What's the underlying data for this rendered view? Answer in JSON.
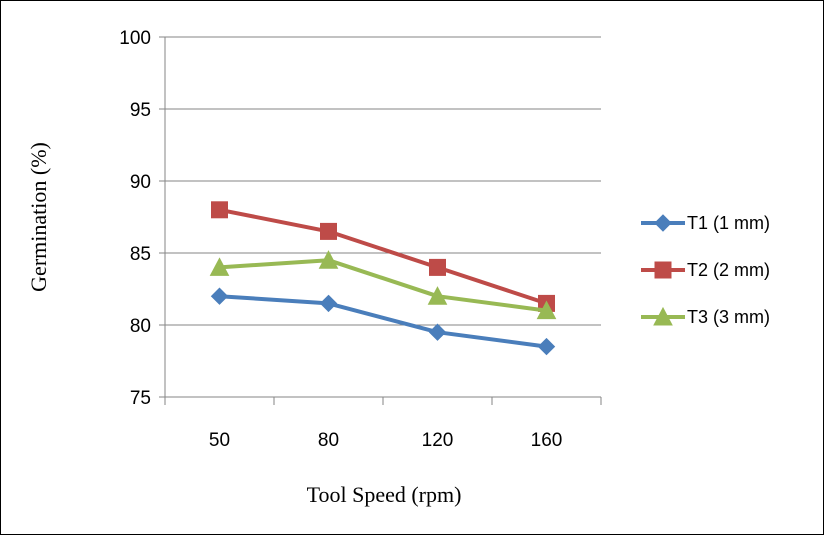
{
  "chart_data": {
    "type": "line",
    "categories": [
      "50",
      "80",
      "120",
      "160"
    ],
    "series": [
      {
        "name": "T1 (1 mm)",
        "values": [
          82,
          81.5,
          79.5,
          78.5
        ],
        "color": "#4a7ebb",
        "marker": "diamond"
      },
      {
        "name": "T2 (2 mm)",
        "values": [
          88,
          86.5,
          84,
          81.5
        ],
        "color": "#be4b48",
        "marker": "square"
      },
      {
        "name": "T3 (3 mm)",
        "values": [
          84,
          84.5,
          82,
          81
        ],
        "color": "#98b954",
        "marker": "triangle"
      }
    ],
    "xlabel": "Tool Speed (rpm)",
    "ylabel": "Germination (%)",
    "ylim": [
      75,
      100
    ],
    "yticks": [
      "75",
      "80",
      "85",
      "90",
      "95",
      "100"
    ],
    "grid": "horizontal",
    "legend": "right"
  }
}
